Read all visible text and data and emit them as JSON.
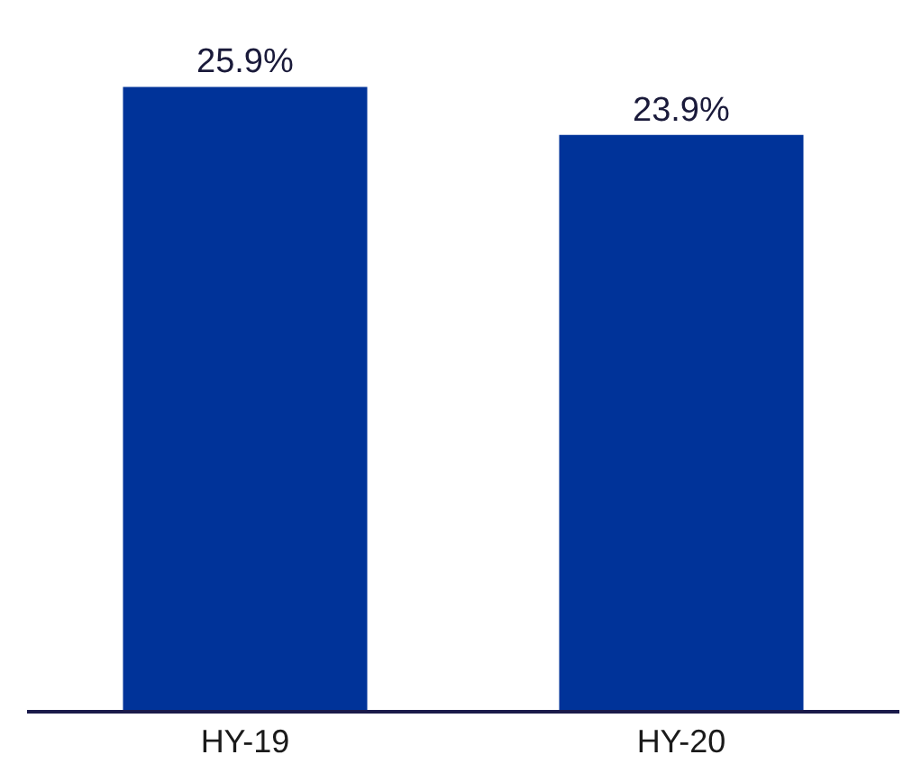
{
  "chart_data": {
    "type": "bar",
    "categories": [
      "HY-19",
      "HY-20"
    ],
    "values": [
      25.9,
      23.9
    ],
    "color": "#003399",
    "value_labels": [
      "25.9%",
      "23.9%"
    ],
    "tick_labels": "x"
  }
}
